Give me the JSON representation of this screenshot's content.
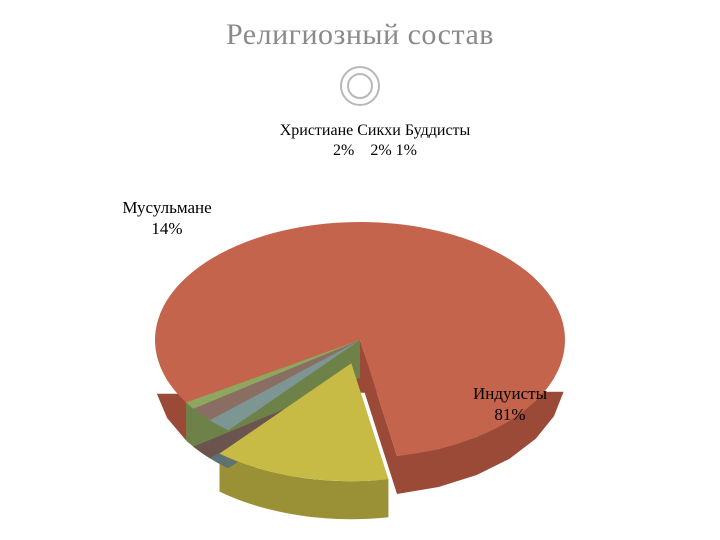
{
  "title": {
    "text": "Религиозный состав",
    "color": "#8a8a8a",
    "fontsize": 30
  },
  "ring_color": "#b8b8b8",
  "chart": {
    "type": "pie-3d-exploded",
    "background": "#ffffff",
    "slices": [
      {
        "id": "hindu",
        "label": "Индуисты",
        "pct": 81,
        "top": "#c5644c",
        "side": "#9a4a37"
      },
      {
        "id": "muslim",
        "label": "Мусульмане",
        "pct": 14,
        "top": "#c7bb45",
        "side": "#9a9035"
      },
      {
        "id": "christian",
        "label": "Христиане",
        "pct": 2,
        "top": "#7d9593",
        "side": "#5e7371"
      },
      {
        "id": "sikh",
        "label": "Сикхи",
        "pct": 2,
        "top": "#8a6e64",
        "side": "#6b544d"
      },
      {
        "id": "buddhist",
        "label": "Буддисты",
        "pct": 1,
        "top": "#8fa65f",
        "side": "#6e8148"
      }
    ],
    "labels": {
      "top_combined": "Христиане Сикхи Буддисты\n2%    2% 1%",
      "muslim": "Мусульмане\n14%",
      "hindu": "Индуисты\n81%"
    }
  }
}
